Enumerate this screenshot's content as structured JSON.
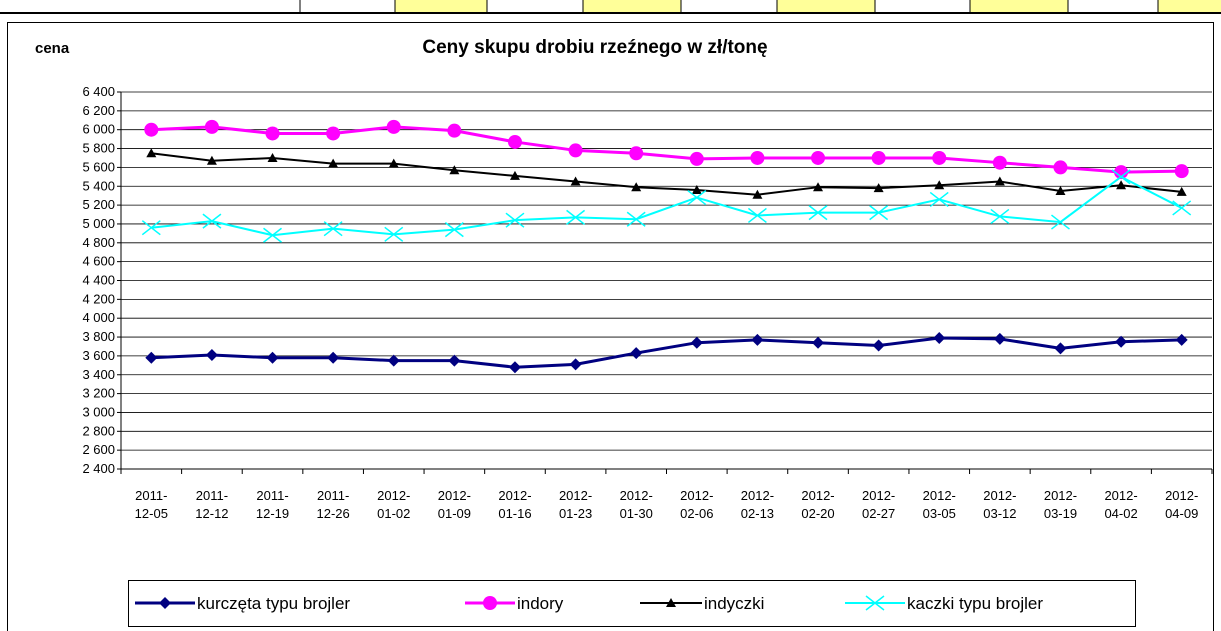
{
  "chart_data": {
    "type": "line",
    "title": "Ceny skupu drobiu rzeźnego w zł/tonę",
    "y_label": "cena",
    "categories": [
      "2011-12-05",
      "2011-12-12",
      "2011-12-19",
      "2011-12-26",
      "2012-01-02",
      "2012-01-09",
      "2012-01-16",
      "2012-01-23",
      "2012-01-30",
      "2012-02-06",
      "2012-02-13",
      "2012-02-20",
      "2012-02-27",
      "2012-03-05",
      "2012-03-12",
      "2012-03-19",
      "2012-04-02",
      "2012-04-09"
    ],
    "series": [
      {
        "name": "kurczęta typu brojler",
        "color": "#000080",
        "marker": "diamond",
        "width": 3,
        "values": [
          3580,
          3610,
          3580,
          3580,
          3550,
          3550,
          3480,
          3510,
          3630,
          3740,
          3770,
          3740,
          3710,
          3790,
          3780,
          3680,
          3750,
          3770
        ]
      },
      {
        "name": "indory",
        "color": "#ff00ff",
        "marker": "circle",
        "width": 3,
        "values": [
          6000,
          6030,
          5960,
          5960,
          6030,
          5990,
          5870,
          5780,
          5750,
          5690,
          5700,
          5700,
          5700,
          5700,
          5650,
          5600,
          5550,
          5560
        ]
      },
      {
        "name": "indyczki",
        "color": "#000000",
        "marker": "triangle",
        "width": 2,
        "values": [
          5750,
          5670,
          5700,
          5640,
          5640,
          5570,
          5510,
          5450,
          5390,
          5360,
          5310,
          5390,
          5380,
          5410,
          5450,
          5350,
          5410,
          5340
        ]
      },
      {
        "name": "kaczki typu brojler",
        "color": "#00ffff",
        "marker": "x",
        "width": 2,
        "values": [
          4960,
          5030,
          4880,
          4950,
          4890,
          4940,
          5040,
          5070,
          5050,
          5280,
          5090,
          5120,
          5120,
          5260,
          5080,
          5020,
          5500,
          5170
        ]
      }
    ],
    "ylim": [
      2400,
      6400
    ],
    "yticks": [
      {
        "value": 2400,
        "label": "2 400"
      },
      {
        "value": 2600,
        "label": "2 600"
      },
      {
        "value": 2800,
        "label": "2 800"
      },
      {
        "value": 3000,
        "label": "3 000"
      },
      {
        "value": 3200,
        "label": "3 200"
      },
      {
        "value": 3400,
        "label": "3 400"
      },
      {
        "value": 3600,
        "label": "3 600"
      },
      {
        "value": 3800,
        "label": "3 800"
      },
      {
        "value": 4000,
        "label": "4 000"
      },
      {
        "value": 4200,
        "label": "4 200"
      },
      {
        "value": 4400,
        "label": "4 400"
      },
      {
        "value": 4600,
        "label": "4 600"
      },
      {
        "value": 4800,
        "label": "4 800"
      },
      {
        "value": 5000,
        "label": "5 000"
      },
      {
        "value": 5200,
        "label": "5 200"
      },
      {
        "value": 5400,
        "label": "5 400"
      },
      {
        "value": 5600,
        "label": "5 600"
      },
      {
        "value": 5800,
        "label": "5 800"
      },
      {
        "value": 6000,
        "label": "6 000"
      },
      {
        "value": 6200,
        "label": "6 200"
      },
      {
        "value": 6400,
        "label": "6 400"
      }
    ],
    "grid": true,
    "legend": "bottom"
  }
}
